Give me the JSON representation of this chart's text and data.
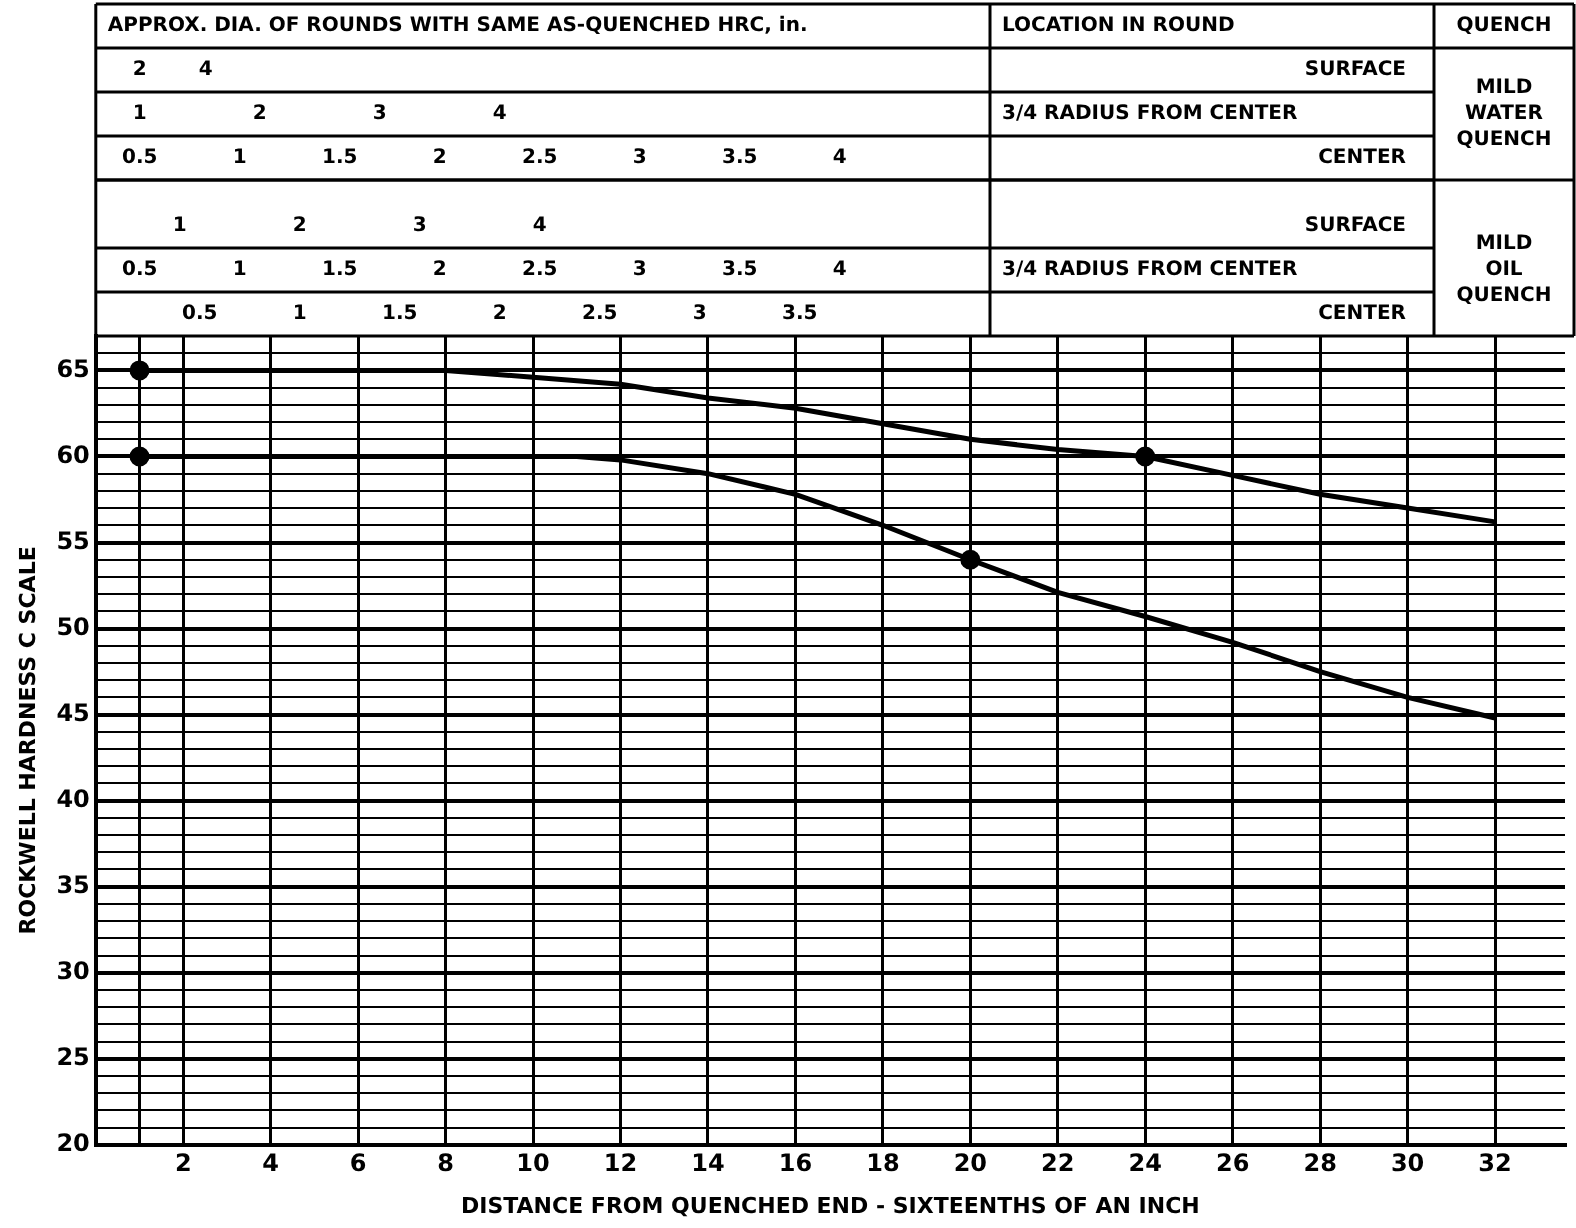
{
  "chart_data": {
    "type": "line",
    "xlabel": "DISTANCE FROM QUENCHED END - SIXTEENTHS OF AN INCH",
    "ylabel": "ROCKWELL HARDNESS C SCALE",
    "annotations": [
      "APPROX. DIA. OF ROUNDS WITH SAME AS-QUENCHED HRC, in.",
      "LOCATION IN ROUND",
      "QUENCH",
      "MILD WATER QUENCH",
      "MILD OIL QUENCH",
      "2 4",
      "SURFACE",
      "1 2 3 4",
      "3/4 RADIUS FROM CENTER",
      "0.5 1 1.5 2 2.5 3 3.5 4",
      "CENTER",
      "1 2 3 4",
      "SURFACE",
      "0.5 1 1.5 2 2.5 3 3.5 4",
      "3/4 RADIUS FROM CENTER",
      "0.5 1 1.5 2 2.5 3 3.5",
      "CENTER"
    ],
    "xlim": [
      0,
      33.6
    ],
    "xticks": [
      {
        "value": 1,
        "label": null
      },
      2,
      4,
      6,
      8,
      10,
      12,
      14,
      16,
      18,
      20,
      22,
      24,
      26,
      28,
      30,
      32
    ],
    "ylim": [
      20,
      67
    ],
    "yticks": [
      20,
      {
        "value": 21,
        "label": null
      },
      {
        "value": 22,
        "label": null
      },
      {
        "value": 23,
        "label": null
      },
      {
        "value": 24,
        "label": null
      },
      25,
      {
        "value": 26,
        "label": null
      },
      {
        "value": 27,
        "label": null
      },
      {
        "value": 28,
        "label": null
      },
      {
        "value": 29,
        "label": null
      },
      30,
      {
        "value": 31,
        "label": null
      },
      {
        "value": 32,
        "label": null
      },
      {
        "value": 33,
        "label": null
      },
      {
        "value": 34,
        "label": null
      },
      35,
      {
        "value": 36,
        "label": null
      },
      {
        "value": 37,
        "label": null
      },
      {
        "value": 38,
        "label": null
      },
      {
        "value": 39,
        "label": null
      },
      40,
      {
        "value": 41,
        "label": null
      },
      {
        "value": 42,
        "label": null
      },
      {
        "value": 43,
        "label": null
      },
      {
        "value": 44,
        "label": null
      },
      45,
      {
        "value": 46,
        "label": null
      },
      {
        "value": 47,
        "label": null
      },
      {
        "value": 48,
        "label": null
      },
      {
        "value": 49,
        "label": null
      },
      50,
      {
        "value": 51,
        "label": null
      },
      {
        "value": 52,
        "label": null
      },
      {
        "value": 53,
        "label": null
      },
      {
        "value": 54,
        "label": null
      },
      55,
      {
        "value": 56,
        "label": null
      },
      {
        "value": 57,
        "label": null
      },
      {
        "value": 58,
        "label": null
      },
      {
        "value": 59,
        "label": null
      },
      60,
      {
        "value": 61,
        "label": null
      },
      {
        "value": 62,
        "label": null
      },
      {
        "value": 63,
        "label": null
      },
      {
        "value": 64,
        "label": null
      },
      65,
      {
        "value": 66,
        "label": null
      }
    ],
    "grid": true,
    "line_style": "solid",
    "series": [
      {
        "color": "#000000",
        "x": [
          1,
          4,
          6,
          8,
          10,
          12,
          14,
          16,
          18,
          20,
          22,
          24,
          26,
          28,
          30,
          32
        ],
        "values": [
          65,
          65,
          65,
          65,
          64.6,
          64.2,
          63.4,
          62.8,
          61.9,
          61,
          60.4,
          60,
          58.9,
          57.8,
          57,
          56.2
        ]
      },
      {
        "color": "#000000",
        "x": [
          1,
          4,
          6,
          8,
          10,
          11,
          12,
          14,
          16,
          18,
          20,
          22,
          24,
          26,
          28,
          30,
          32
        ],
        "values": [
          60,
          60,
          60,
          60,
          60,
          60,
          59.8,
          59,
          57.8,
          56,
          54,
          52.1,
          50.7,
          49.2,
          47.5,
          46,
          44.8
        ]
      },
      {
        "type": "scatter",
        "color": "#000000",
        "marker": "circle",
        "x": [
          1,
          1,
          20,
          24
        ],
        "values": [
          65,
          60,
          54,
          60
        ]
      }
    ]
  }
}
